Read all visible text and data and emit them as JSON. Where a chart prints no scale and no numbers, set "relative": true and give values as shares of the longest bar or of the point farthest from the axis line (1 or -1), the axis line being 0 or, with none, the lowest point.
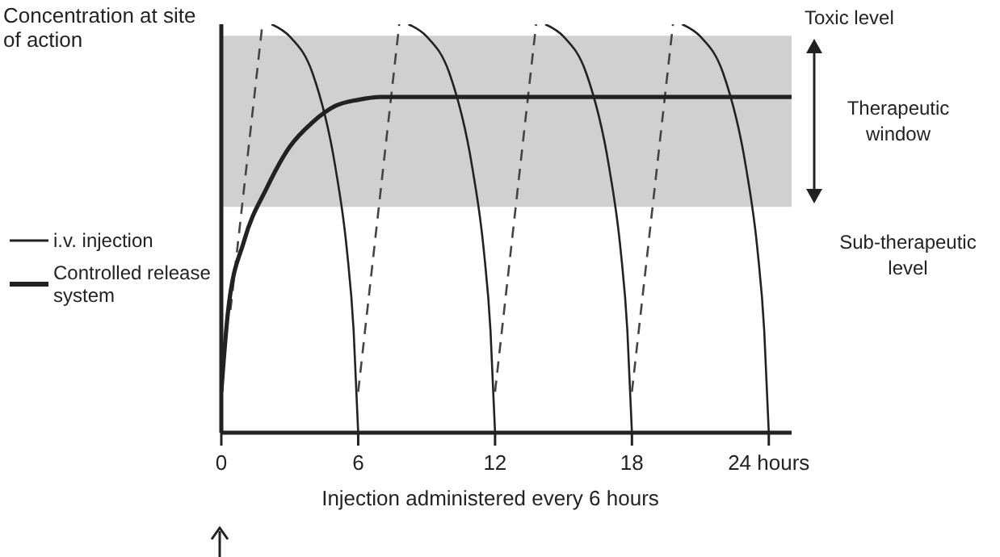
{
  "chart_data": {
    "type": "line",
    "relative": true,
    "ylabel": "Concentration at site of action",
    "xlabel": "Injection administered every 6 hours",
    "xlim": [
      0,
      25
    ],
    "xticks": [
      0,
      6,
      12,
      18,
      {
        "value": 24,
        "label": "24 hours"
      }
    ],
    "ylim": [
      0,
      1
    ],
    "legend": "left",
    "marker": "none",
    "bands": [
      {
        "axis": "y",
        "from": 0.553,
        "to": 0.972,
        "label": "Therapeutic window",
        "color": "#d0d0d0"
      }
    ],
    "annotations": [
      "Toxic level",
      "Sub-therapeutic level"
    ],
    "series": [
      {
        "name": "i.v. injection",
        "color": "#222222",
        "line_style": "solid",
        "x": [
          2.2,
          3,
          4,
          5,
          5.5,
          5.8,
          6,
          7,
          8.2,
          9,
          10,
          11,
          11.5,
          11.8,
          12,
          13,
          14.2,
          15,
          16,
          17,
          17.5,
          17.8,
          18,
          19,
          20.2,
          21,
          22,
          23,
          23.5,
          23.8,
          24
        ],
        "values": [
          1,
          0.97,
          0.88,
          0.65,
          0.45,
          0.25,
          0,
          null,
          1,
          0.97,
          0.88,
          0.65,
          0.45,
          0.25,
          0,
          null,
          1,
          0.97,
          0.88,
          0.65,
          0.45,
          0.25,
          0,
          null,
          1,
          0.97,
          0.88,
          0.65,
          0.45,
          0.25,
          0
        ]
      },
      {
        "color": "#444444",
        "line_style": "dashed",
        "x": [
          0.4,
          1.8,
          3,
          6,
          7.8,
          9,
          12,
          13.8,
          15,
          18,
          19.8
        ],
        "values": [
          0.3,
          1,
          null,
          0.1,
          1,
          null,
          0.1,
          1,
          null,
          0.1,
          1
        ]
      },
      {
        "name": "Controlled release system",
        "color": "#222222",
        "line_style": "solid",
        "x": [
          0,
          0.3,
          1,
          2,
          3,
          4,
          5,
          6,
          7,
          8,
          25
        ],
        "values": [
          0.1,
          0.3,
          0.47,
          0.6,
          0.7,
          0.76,
          0.8,
          0.815,
          0.822,
          0.822,
          0.822
        ]
      }
    ]
  }
}
